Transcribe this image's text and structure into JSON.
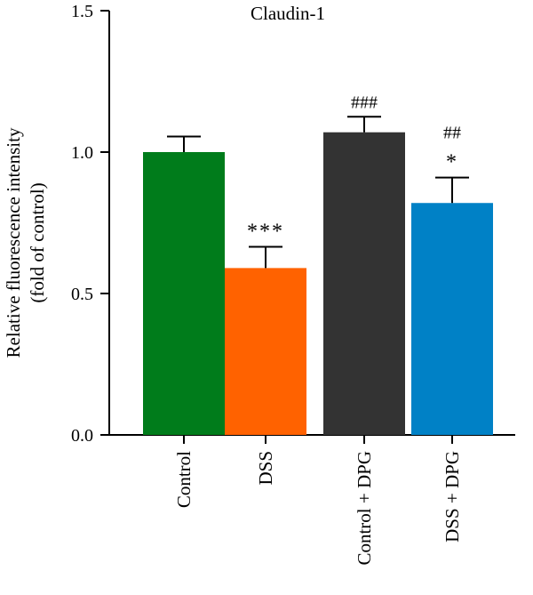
{
  "chart_data": {
    "type": "bar",
    "title": "Claudin-1",
    "ylabel_lines": [
      "Relative fluorescence intensity",
      "(fold of control)"
    ],
    "ylim": [
      0,
      1.5
    ],
    "yticks": [
      0.0,
      0.5,
      1.0,
      1.5
    ],
    "ytick_labels": [
      "0.0",
      "0.5",
      "1.0",
      "1.5"
    ],
    "categories": [
      "Control",
      "DSS",
      "Control + DPG",
      "DSS + DPG"
    ],
    "values": [
      1.0,
      0.59,
      1.07,
      0.82
    ],
    "errors": [
      0.055,
      0.075,
      0.055,
      0.09
    ],
    "colors": [
      "#007c1b",
      "#ff6200",
      "#333333",
      "#0081c6"
    ],
    "annotations": [
      [],
      [
        "***"
      ],
      [
        "###"
      ],
      [
        "*",
        "##"
      ]
    ],
    "grid": false
  }
}
